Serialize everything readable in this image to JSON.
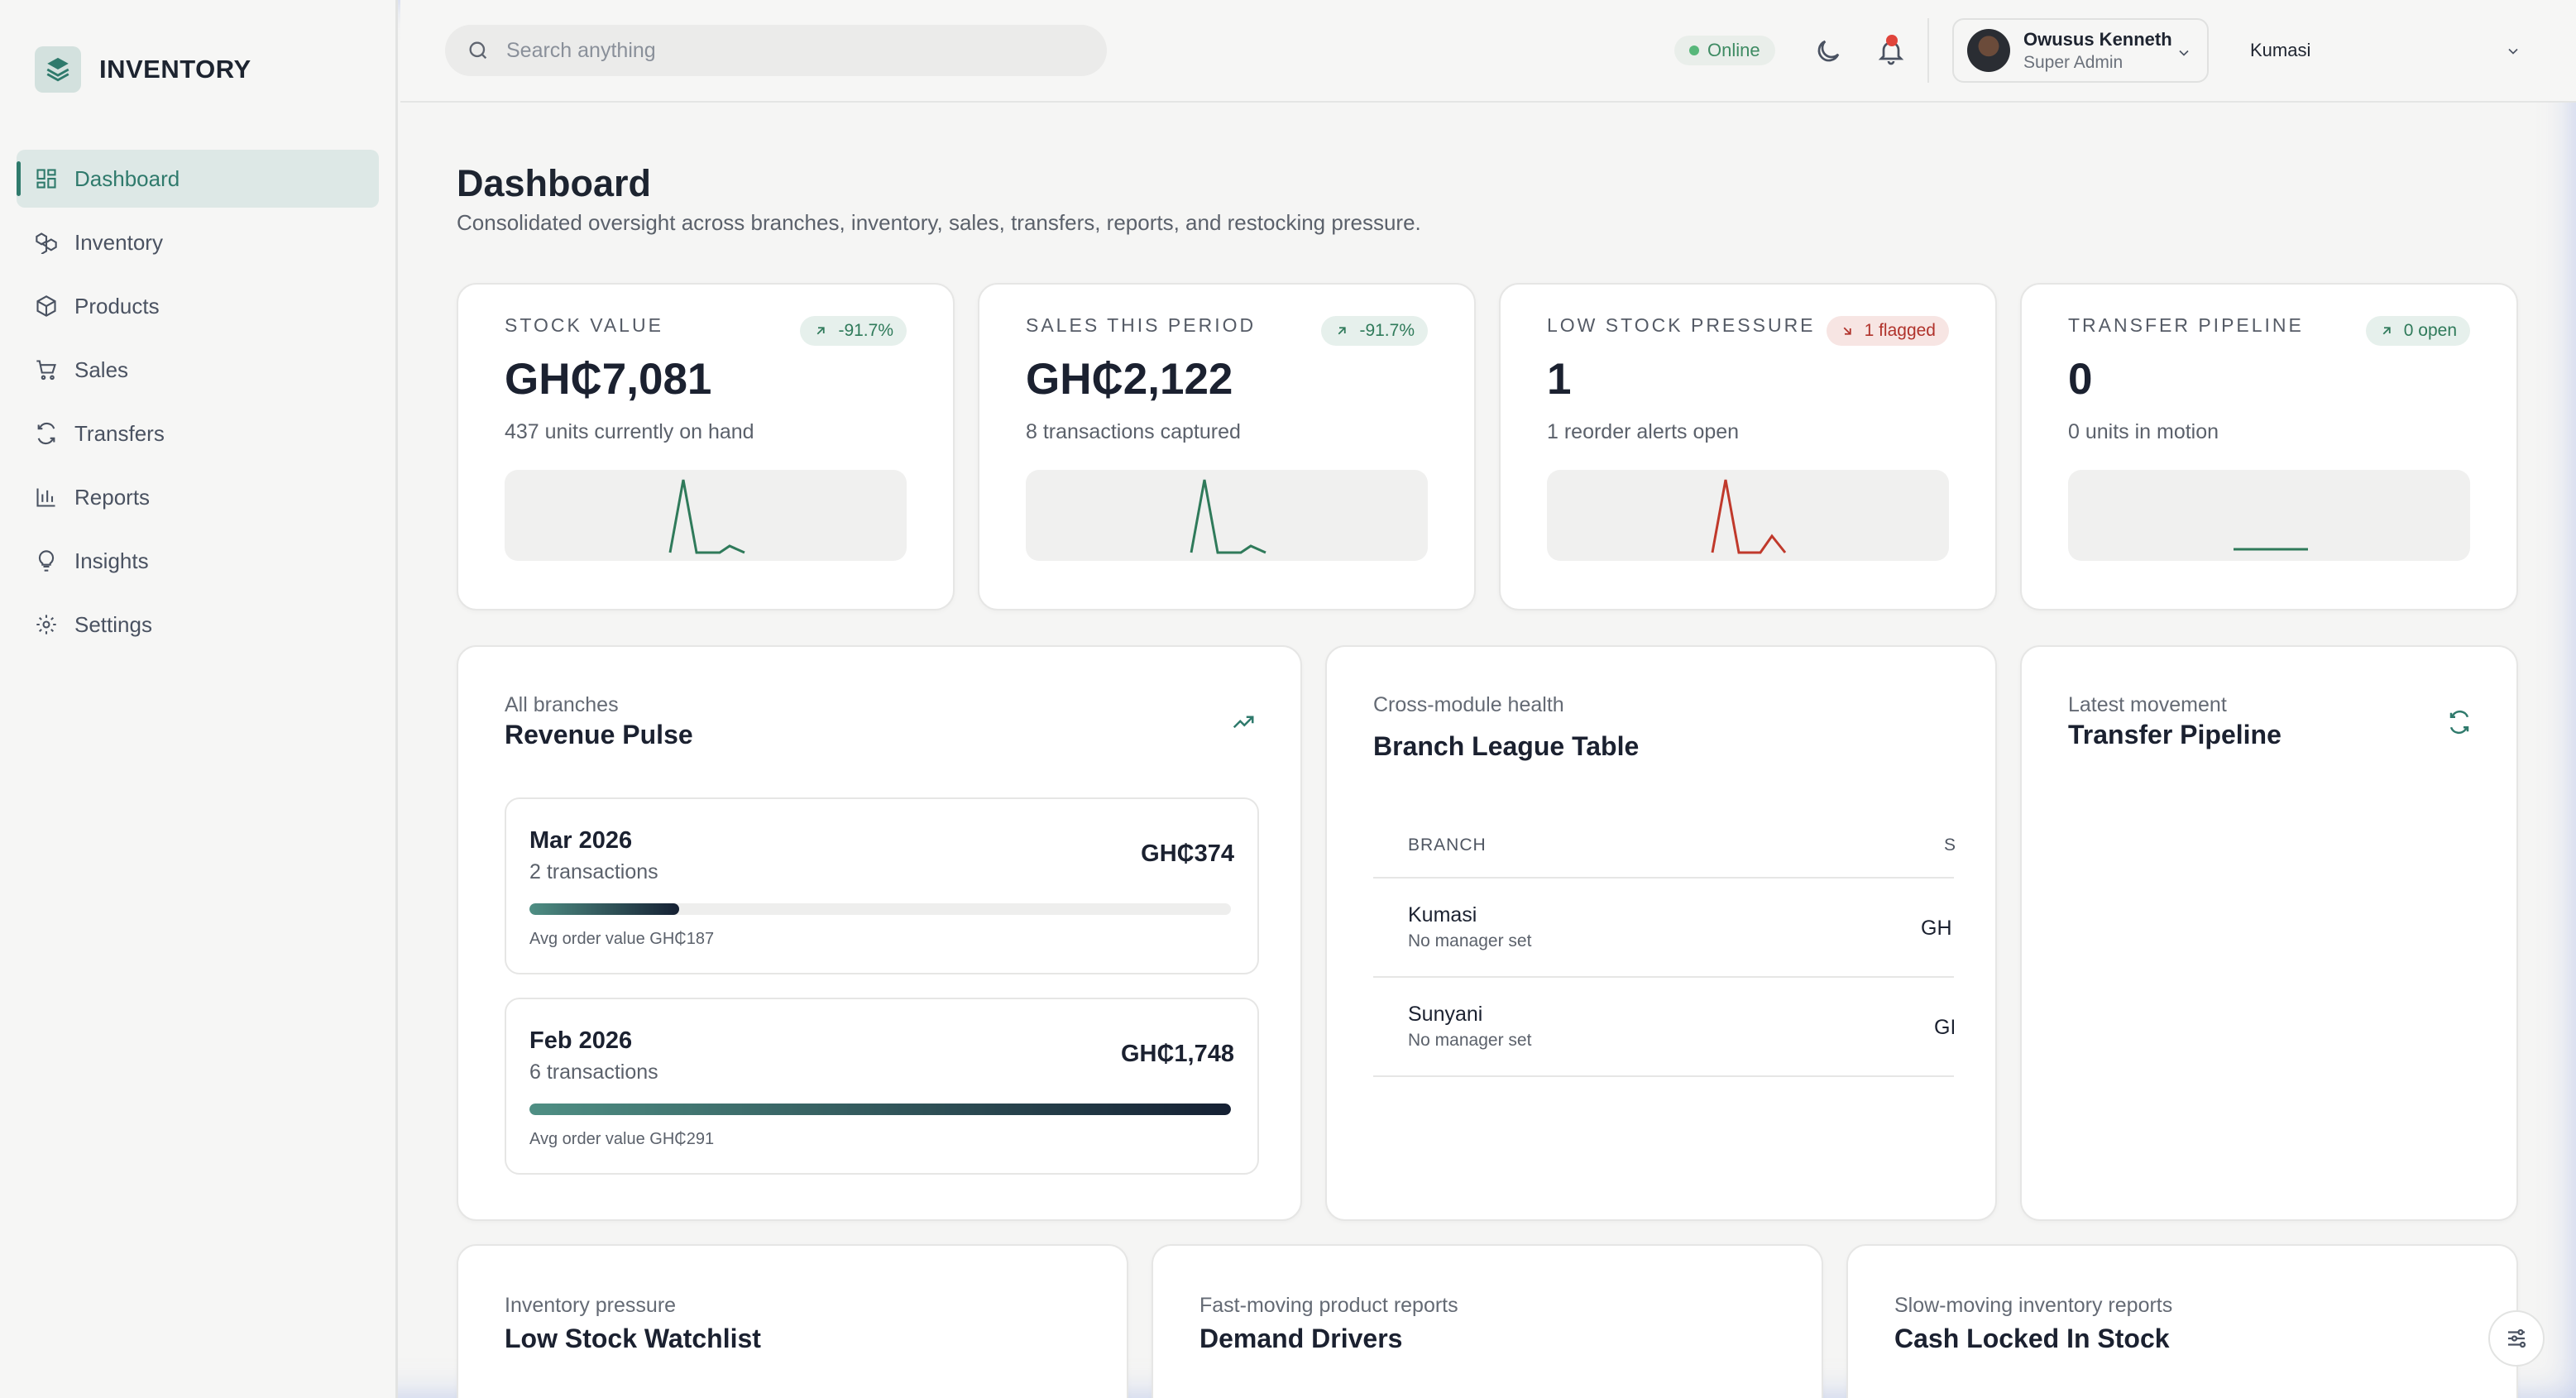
{
  "brand": {
    "name": "INVENTORY"
  },
  "sidebar": {
    "items": [
      {
        "label": "Dashboard",
        "icon": "dashboard-icon",
        "active": true
      },
      {
        "label": "Inventory",
        "icon": "inventory-icon"
      },
      {
        "label": "Products",
        "icon": "products-icon"
      },
      {
        "label": "Sales",
        "icon": "cart-icon"
      },
      {
        "label": "Transfers",
        "icon": "transfer-icon"
      },
      {
        "label": "Reports",
        "icon": "bar-chart-icon"
      },
      {
        "label": "Insights",
        "icon": "lightbulb-icon"
      },
      {
        "label": "Settings",
        "icon": "gear-icon"
      }
    ]
  },
  "header": {
    "search_placeholder": "Search anything",
    "status": "Online",
    "user": {
      "name": "Owusus Kenneth",
      "role": "Super Admin"
    },
    "branch": "Kumasi"
  },
  "page": {
    "title": "Dashboard",
    "subtitle": "Consolidated oversight across branches, inventory, sales, transfers, reports, and restocking pressure."
  },
  "kpis": [
    {
      "label": "Stock Value",
      "badge": "-91.7%",
      "value": "GH₵7,081",
      "sub": "437 units currently on hand",
      "trend": "up",
      "color": "#2f7a5a"
    },
    {
      "label": "Sales This Period",
      "badge": "-91.7%",
      "value": "GH₵2,122",
      "sub": "8 transactions captured",
      "trend": "up",
      "color": "#2f7a5a"
    },
    {
      "label": "Low Stock Pressure",
      "badge": "1 flagged",
      "value": "1",
      "sub": "1 reorder alerts open",
      "trend": "down",
      "color": "#c0392b"
    },
    {
      "label": "Transfer Pipeline",
      "badge": "0 open",
      "value": "0",
      "sub": "0 units in motion",
      "trend": "up",
      "color": "#2f7a5a"
    }
  ],
  "revenue": {
    "kicker": "All branches",
    "title": "Revenue Pulse",
    "items": [
      {
        "month": "Mar 2026",
        "transactions": "2 transactions",
        "amount": "GH₵374",
        "avg": "Avg order value GH₵187",
        "share": 0.214
      },
      {
        "month": "Feb 2026",
        "transactions": "6 transactions",
        "amount": "GH₵1,748",
        "avg": "Avg order value GH₵291",
        "share": 1.0
      }
    ]
  },
  "league": {
    "kicker": "Cross-module health",
    "title": "Branch League Table",
    "col_branch": "BRANCH",
    "col_clipped": "S",
    "rows": [
      {
        "branch": "Kumasi",
        "manager": "No manager set",
        "value": "GH"
      },
      {
        "branch": "Sunyani",
        "manager": "No manager set",
        "value": "GI"
      }
    ]
  },
  "transfer": {
    "kicker": "Latest movement",
    "title": "Transfer Pipeline"
  },
  "bottom": [
    {
      "kicker": "Inventory pressure",
      "title": "Low Stock Watchlist"
    },
    {
      "kicker": "Fast-moving product reports",
      "title": "Demand Drivers"
    },
    {
      "kicker": "Slow-moving inventory reports",
      "title": "Cash Locked In Stock"
    }
  ]
}
